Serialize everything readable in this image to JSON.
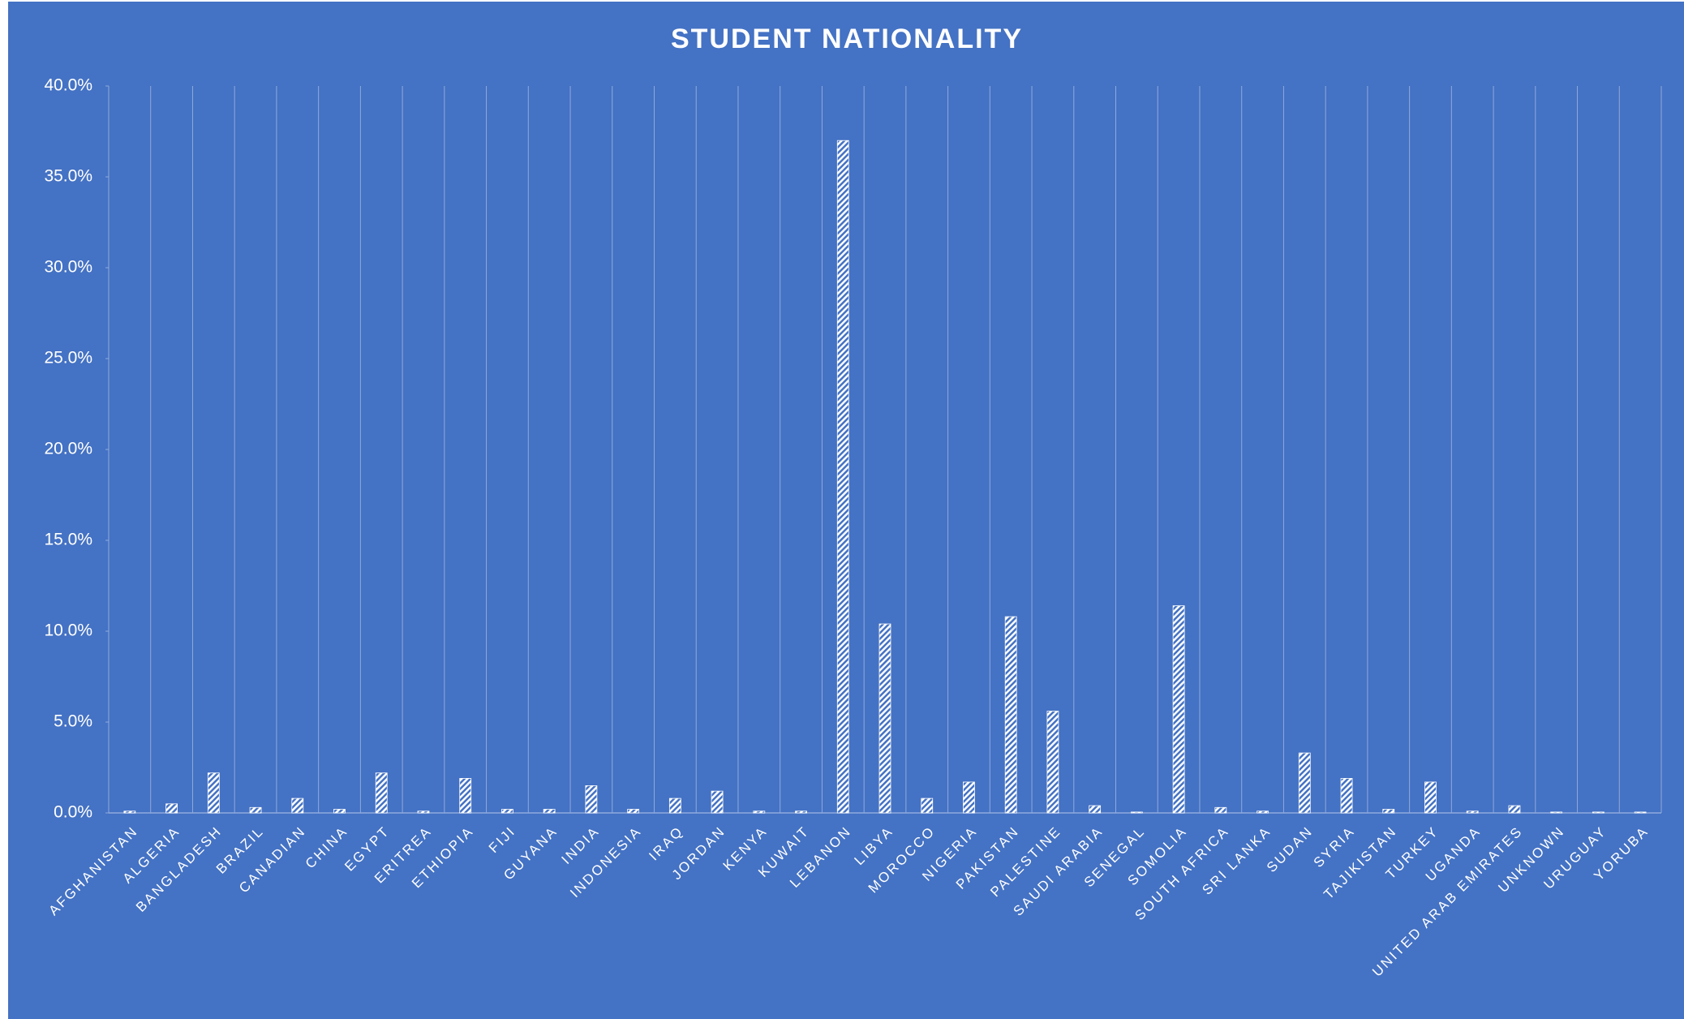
{
  "chart_data": {
    "type": "bar",
    "title": "STUDENT NATIONALITY",
    "categories": [
      "AFGHANISTAN",
      "ALGERIA",
      "BANGLADESH",
      "BRAZIL",
      "CANADIAN",
      "CHINA",
      "EGYPT",
      "ERITREA",
      "ETHIOPIA",
      "FIJI",
      "GUYANA",
      "INDIA",
      "INDONESIA",
      "IRAQ",
      "JORDAN",
      "KENYA",
      "KUWAIT",
      "LEBANON",
      "LIBYA",
      "MOROCCO",
      "NIGERIA",
      "PAKISTAN",
      "PALESTINE",
      "SAUDI ARABIA",
      "SENEGAL",
      "SOMOLIA",
      "SOUTH AFRICA",
      "SRI LANKA",
      "SUDAN",
      "SYRIA",
      "TAJIKISTAN",
      "TURKEY",
      "UGANDA",
      "UNITED ARAB EMIRATES",
      "UNKNOWN",
      "URUGUAY",
      "YORUBA"
    ],
    "values": [
      0.1,
      0.5,
      2.2,
      0.3,
      0.8,
      0.2,
      2.2,
      0.1,
      1.9,
      0.2,
      0.2,
      1.5,
      0.2,
      0.8,
      1.2,
      0.1,
      0.1,
      37.0,
      10.4,
      0.8,
      1.7,
      10.8,
      5.6,
      0.4,
      0.05,
      11.4,
      0.3,
      0.1,
      3.3,
      1.9,
      0.2,
      1.7,
      0.1,
      0.4,
      0.05,
      0.05,
      0.05
    ],
    "color": "#ffffff",
    "ylim": [
      0,
      40
    ],
    "yticks": [
      {
        "value": 0,
        "label": "0.0%"
      },
      {
        "value": 5,
        "label": "5.0%"
      },
      {
        "value": 10,
        "label": "10.0%"
      },
      {
        "value": 15,
        "label": "15.0%"
      },
      {
        "value": 20,
        "label": "20.0%"
      },
      {
        "value": 25,
        "label": "25.0%"
      },
      {
        "value": 30,
        "label": "30.0%"
      },
      {
        "value": 35,
        "label": "35.0%"
      },
      {
        "value": 40,
        "label": "40.0%"
      }
    ],
    "grid": "x"
  }
}
